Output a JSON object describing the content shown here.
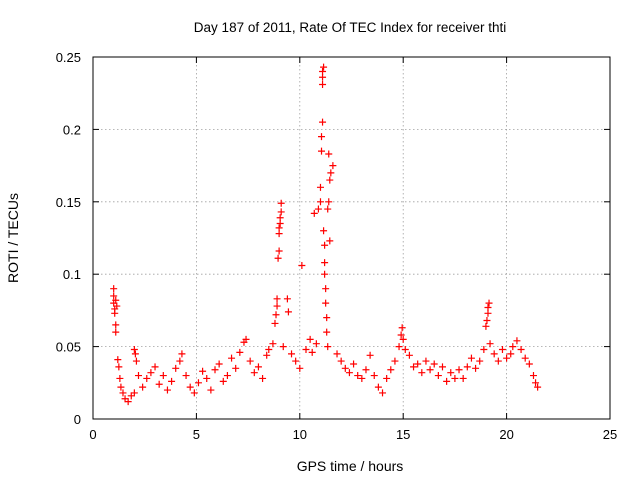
{
  "chart_data": {
    "type": "scatter",
    "title": "Day 187 of 2011, Rate Of TEC Index for receiver thti",
    "xlabel": "GPS time / hours",
    "ylabel": "ROTI / TECUs",
    "xlim": [
      0,
      25
    ],
    "ylim": [
      0,
      0.25
    ],
    "x_ticks": [
      0,
      5,
      10,
      15,
      20,
      25
    ],
    "x_tick_labels": [
      "0",
      "5",
      "10",
      "15",
      "20",
      "25"
    ],
    "y_ticks": [
      0,
      0.05,
      0.1,
      0.15,
      0.2,
      0.25
    ],
    "y_tick_labels": [
      "0",
      "0.05",
      "0.1",
      "0.15",
      "0.2",
      "0.25"
    ],
    "grid": true,
    "marker": "plus",
    "color": "#ff0000",
    "series": [
      {
        "name": "ROTI",
        "points": [
          [
            1.0,
            0.09
          ],
          [
            1.0,
            0.085
          ],
          [
            1.0,
            0.08
          ],
          [
            1.05,
            0.076
          ],
          [
            1.05,
            0.073
          ],
          [
            1.1,
            0.082
          ],
          [
            1.1,
            0.065
          ],
          [
            1.1,
            0.06
          ],
          [
            1.15,
            0.078
          ],
          [
            1.2,
            0.041
          ],
          [
            1.25,
            0.036
          ],
          [
            1.3,
            0.028
          ],
          [
            1.35,
            0.022
          ],
          [
            1.45,
            0.018
          ],
          [
            1.55,
            0.014
          ],
          [
            1.7,
            0.012
          ],
          [
            1.85,
            0.016
          ],
          [
            2.0,
            0.018
          ],
          [
            2.0,
            0.048
          ],
          [
            2.05,
            0.045
          ],
          [
            2.1,
            0.04
          ],
          [
            2.2,
            0.03
          ],
          [
            2.4,
            0.022
          ],
          [
            2.6,
            0.028
          ],
          [
            2.8,
            0.032
          ],
          [
            3.0,
            0.036
          ],
          [
            3.2,
            0.024
          ],
          [
            3.4,
            0.03
          ],
          [
            3.6,
            0.02
          ],
          [
            3.8,
            0.026
          ],
          [
            4.0,
            0.035
          ],
          [
            4.2,
            0.04
          ],
          [
            4.3,
            0.045
          ],
          [
            4.5,
            0.03
          ],
          [
            4.7,
            0.022
          ],
          [
            4.9,
            0.018
          ],
          [
            5.1,
            0.025
          ],
          [
            5.3,
            0.033
          ],
          [
            5.5,
            0.028
          ],
          [
            5.7,
            0.02
          ],
          [
            5.9,
            0.034
          ],
          [
            6.1,
            0.038
          ],
          [
            6.3,
            0.026
          ],
          [
            6.5,
            0.03
          ],
          [
            6.7,
            0.042
          ],
          [
            6.9,
            0.035
          ],
          [
            7.1,
            0.046
          ],
          [
            7.3,
            0.053
          ],
          [
            7.4,
            0.055
          ],
          [
            7.6,
            0.04
          ],
          [
            7.8,
            0.032
          ],
          [
            8.0,
            0.036
          ],
          [
            8.2,
            0.028
          ],
          [
            8.4,
            0.044
          ],
          [
            8.5,
            0.048
          ],
          [
            8.7,
            0.052
          ],
          [
            8.8,
            0.066
          ],
          [
            8.85,
            0.072
          ],
          [
            8.9,
            0.078
          ],
          [
            8.9,
            0.083
          ],
          [
            8.95,
            0.111
          ],
          [
            9.0,
            0.116
          ],
          [
            9.0,
            0.128
          ],
          [
            9.0,
            0.132
          ],
          [
            9.05,
            0.135
          ],
          [
            9.05,
            0.139
          ],
          [
            9.1,
            0.143
          ],
          [
            9.1,
            0.149
          ],
          [
            9.2,
            0.05
          ],
          [
            9.4,
            0.083
          ],
          [
            9.45,
            0.074
          ],
          [
            9.6,
            0.045
          ],
          [
            9.8,
            0.04
          ],
          [
            10.0,
            0.035
          ],
          [
            10.1,
            0.106
          ],
          [
            10.3,
            0.048
          ],
          [
            10.5,
            0.055
          ],
          [
            10.6,
            0.046
          ],
          [
            10.7,
            0.142
          ],
          [
            10.8,
            0.052
          ],
          [
            10.9,
            0.145
          ],
          [
            11.0,
            0.15
          ],
          [
            11.0,
            0.16
          ],
          [
            11.05,
            0.185
          ],
          [
            11.05,
            0.195
          ],
          [
            11.1,
            0.205
          ],
          [
            11.1,
            0.231
          ],
          [
            11.1,
            0.236
          ],
          [
            11.1,
            0.24
          ],
          [
            11.15,
            0.243
          ],
          [
            11.15,
            0.13
          ],
          [
            11.2,
            0.12
          ],
          [
            11.2,
            0.108
          ],
          [
            11.2,
            0.1
          ],
          [
            11.25,
            0.09
          ],
          [
            11.25,
            0.08
          ],
          [
            11.3,
            0.07
          ],
          [
            11.3,
            0.06
          ],
          [
            11.35,
            0.05
          ],
          [
            11.35,
            0.145
          ],
          [
            11.4,
            0.15
          ],
          [
            11.4,
            0.183
          ],
          [
            11.45,
            0.123
          ],
          [
            11.45,
            0.165
          ],
          [
            11.5,
            0.17
          ],
          [
            11.6,
            0.175
          ],
          [
            11.8,
            0.045
          ],
          [
            12.0,
            0.04
          ],
          [
            12.2,
            0.035
          ],
          [
            12.4,
            0.032
          ],
          [
            12.6,
            0.038
          ],
          [
            12.8,
            0.03
          ],
          [
            13.0,
            0.028
          ],
          [
            13.2,
            0.034
          ],
          [
            13.4,
            0.044
          ],
          [
            13.6,
            0.03
          ],
          [
            13.8,
            0.022
          ],
          [
            14.0,
            0.018
          ],
          [
            14.2,
            0.028
          ],
          [
            14.4,
            0.034
          ],
          [
            14.6,
            0.04
          ],
          [
            14.8,
            0.05
          ],
          [
            14.9,
            0.058
          ],
          [
            14.95,
            0.063
          ],
          [
            15.0,
            0.055
          ],
          [
            15.1,
            0.048
          ],
          [
            15.3,
            0.044
          ],
          [
            15.5,
            0.036
          ],
          [
            15.7,
            0.038
          ],
          [
            15.9,
            0.032
          ],
          [
            16.1,
            0.04
          ],
          [
            16.3,
            0.034
          ],
          [
            16.5,
            0.038
          ],
          [
            16.7,
            0.03
          ],
          [
            16.9,
            0.036
          ],
          [
            17.1,
            0.026
          ],
          [
            17.3,
            0.032
          ],
          [
            17.5,
            0.028
          ],
          [
            17.7,
            0.034
          ],
          [
            17.9,
            0.028
          ],
          [
            18.1,
            0.036
          ],
          [
            18.3,
            0.042
          ],
          [
            18.5,
            0.035
          ],
          [
            18.7,
            0.04
          ],
          [
            18.9,
            0.048
          ],
          [
            19.0,
            0.064
          ],
          [
            19.05,
            0.068
          ],
          [
            19.1,
            0.073
          ],
          [
            19.1,
            0.077
          ],
          [
            19.15,
            0.08
          ],
          [
            19.2,
            0.052
          ],
          [
            19.4,
            0.045
          ],
          [
            19.6,
            0.04
          ],
          [
            19.8,
            0.048
          ],
          [
            20.0,
            0.042
          ],
          [
            20.2,
            0.045
          ],
          [
            20.3,
            0.05
          ],
          [
            20.5,
            0.054
          ],
          [
            20.7,
            0.048
          ],
          [
            20.9,
            0.042
          ],
          [
            21.1,
            0.038
          ],
          [
            21.3,
            0.03
          ],
          [
            21.4,
            0.025
          ],
          [
            21.5,
            0.022
          ]
        ]
      }
    ]
  }
}
